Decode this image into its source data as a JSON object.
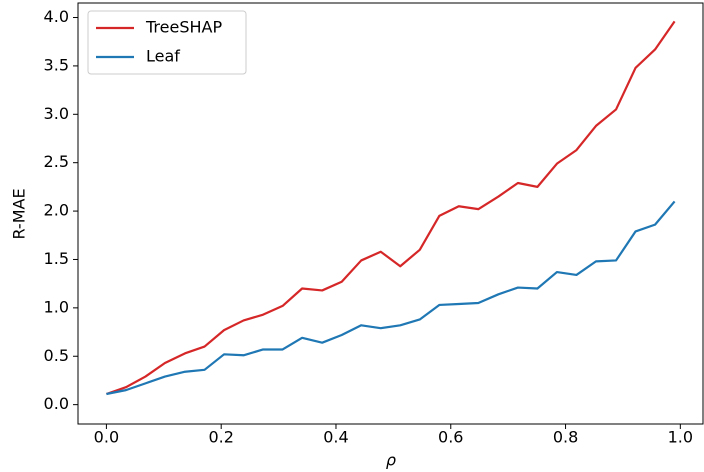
{
  "chart_data": {
    "type": "line",
    "x_label": "ρ",
    "y_label": "R-MAE",
    "x": [
      0.0,
      0.034,
      0.068,
      0.102,
      0.137,
      0.171,
      0.205,
      0.239,
      0.273,
      0.307,
      0.341,
      0.376,
      0.41,
      0.444,
      0.478,
      0.512,
      0.546,
      0.58,
      0.614,
      0.648,
      0.683,
      0.717,
      0.751,
      0.785,
      0.819,
      0.853,
      0.888,
      0.922,
      0.956,
      0.99
    ],
    "series": [
      {
        "name": "TreeSHAP",
        "color": "#d62728",
        "values": [
          0.11,
          0.18,
          0.29,
          0.43,
          0.53,
          0.6,
          0.77,
          0.87,
          0.93,
          1.02,
          1.2,
          1.18,
          1.27,
          1.49,
          1.58,
          1.43,
          1.6,
          1.95,
          2.05,
          2.02,
          2.15,
          2.29,
          2.25,
          2.49,
          2.63,
          2.88,
          3.05,
          3.48,
          3.67,
          3.96
        ]
      },
      {
        "name": "Leaf",
        "color": "#1f77b4",
        "values": [
          0.11,
          0.15,
          0.22,
          0.29,
          0.34,
          0.36,
          0.52,
          0.51,
          0.57,
          0.57,
          0.69,
          0.64,
          0.72,
          0.82,
          0.79,
          0.82,
          0.88,
          1.03,
          1.04,
          1.05,
          1.14,
          1.21,
          1.2,
          1.37,
          1.34,
          1.48,
          1.49,
          1.79,
          1.86,
          2.1
        ]
      }
    ],
    "xlim": [
      -0.0495,
      1.0395
    ],
    "ylim": [
      -0.2,
      4.15
    ],
    "xticks": [
      {
        "value": 0,
        "label": "0.0"
      },
      0.2,
      0.4,
      0.6,
      0.8,
      {
        "value": 1,
        "label": "1.0"
      }
    ],
    "yticks": [
      {
        "value": 0,
        "label": "0.0"
      },
      0.5,
      {
        "value": 1,
        "label": "1.0"
      },
      1.5,
      {
        "value": 2,
        "label": "2.0"
      },
      2.5,
      {
        "value": 3,
        "label": "3.0"
      },
      3.5,
      {
        "value": 4,
        "label": "4.0"
      }
    ],
    "grid": false,
    "legend": "upper left"
  }
}
